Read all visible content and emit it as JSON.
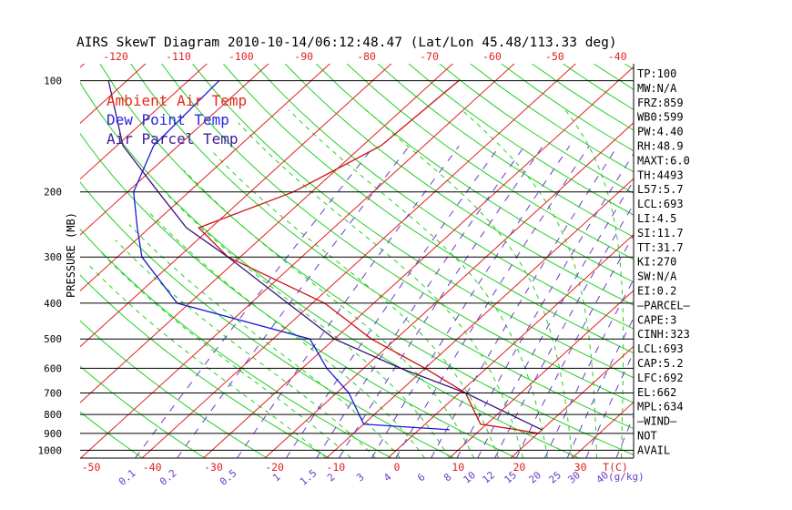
{
  "chart_data": {
    "type": "line",
    "title": "AIRS SkewT Diagram 2010-10-14/06:12:48.47 (Lat/Lon 45.48/113.33 deg)",
    "ylabel": "PRESSURE (MB)",
    "xlabel_bottom": "T(C)",
    "mixing_ratio_unit": "(g/kg)",
    "top_ticks": [
      "-120",
      "-110",
      "-100",
      "-90",
      "-80",
      "-70",
      "-60",
      "-50",
      "-40"
    ],
    "bottom_ticks": [
      "-50",
      "-40",
      "-30",
      "-20",
      "-10",
      "0",
      "10",
      "20",
      "30"
    ],
    "mixing_ratio_labels": [
      "0.1",
      "0.2",
      "0.5",
      "1",
      "1.5",
      "2",
      "3",
      "4",
      "6",
      "8",
      "10",
      "12",
      "15",
      "20",
      "25",
      "30",
      "40"
    ],
    "pressure_levels": [
      "100",
      "200",
      "300",
      "400",
      "500",
      "600",
      "700",
      "800",
      "900",
      "1000"
    ],
    "legend": [
      {
        "label": "Ambient Air Temp",
        "color": "#e8281e"
      },
      {
        "label": "Dew Point Temp",
        "color": "#2828e0"
      },
      {
        "label": "Air Parcel Temp",
        "color": "#3c1e9a"
      }
    ],
    "series": [
      {
        "name": "Ambient Air Temp",
        "color": "#cc1111",
        "points": [
          [
            100,
            -56
          ],
          [
            150,
            -57
          ],
          [
            200,
            -63
          ],
          [
            250,
            -72
          ],
          [
            300,
            -62
          ],
          [
            400,
            -38
          ],
          [
            500,
            -24
          ],
          [
            600,
            -10
          ],
          [
            700,
            1
          ],
          [
            850,
            9
          ],
          [
            880,
            16
          ],
          [
            900,
            20
          ]
        ]
      },
      {
        "name": "Dew Point Temp",
        "color": "#1a1ad6",
        "points": [
          [
            100,
            -95
          ],
          [
            150,
            -94
          ],
          [
            200,
            -89
          ],
          [
            250,
            -82
          ],
          [
            300,
            -76
          ],
          [
            400,
            -62
          ],
          [
            500,
            -34
          ],
          [
            600,
            -26
          ],
          [
            700,
            -18
          ],
          [
            850,
            -10
          ],
          [
            880,
            5
          ]
        ]
      },
      {
        "name": "Air Parcel Temp",
        "color": "#3a1480",
        "points": [
          [
            100,
            -113
          ],
          [
            150,
            -99
          ],
          [
            200,
            -85
          ],
          [
            250,
            -74
          ],
          [
            300,
            -62
          ],
          [
            400,
            -44
          ],
          [
            500,
            -30
          ],
          [
            600,
            -14
          ],
          [
            700,
            1
          ],
          [
            880,
            20
          ]
        ]
      }
    ],
    "indices": [
      "TP:100",
      "MW:N/A",
      "FRZ:859",
      "WB0:599",
      "PW:4.40",
      "RH:48.9",
      "MAXT:6.0",
      "TH:4493",
      "L57:5.7",
      "LCL:693",
      "LI:4.5",
      "SI:11.7",
      "TT:31.7",
      "KI:270",
      "SW:N/A",
      "EI:0.2",
      "—PARCEL—",
      "CAPE:3",
      "CINH:323",
      "LCL:693",
      "CAP:5.2",
      "LFC:692",
      "EL:662",
      "MPL:634",
      "—WIND—",
      "NOT",
      "AVAIL"
    ]
  }
}
